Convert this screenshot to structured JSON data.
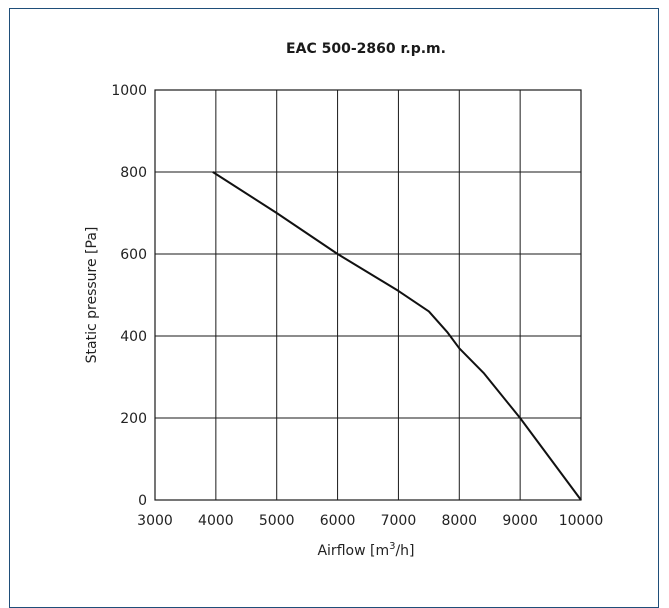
{
  "chart_data": {
    "type": "line",
    "title": "EAC 500-2860 r.p.m.",
    "xlabel": "Airflow [m",
    "xlabel_sup": "3",
    "xlabel_end": "/h]",
    "ylabel": "Static pressure [Pa]",
    "xlim": [
      3000,
      10000
    ],
    "ylim": [
      0,
      1000
    ],
    "x_ticks": [
      3000,
      4000,
      5000,
      6000,
      7000,
      8000,
      9000,
      10000
    ],
    "y_ticks": [
      0,
      200,
      400,
      600,
      800,
      1000
    ],
    "x_tick_labels": [
      "3000",
      "4000",
      "5000",
      "6000",
      "7000",
      "8000",
      "9000",
      "10000"
    ],
    "y_tick_labels": [
      "0",
      "200",
      "400",
      "600",
      "800",
      "1000"
    ],
    "grid": true,
    "series": [
      {
        "x": [
          3950,
          5000,
          6000,
          7000,
          7500,
          7800,
          8000,
          8400,
          9000,
          10000
        ],
        "y": [
          800,
          700,
          600,
          510,
          460,
          410,
          370,
          310,
          200,
          0
        ]
      }
    ]
  }
}
